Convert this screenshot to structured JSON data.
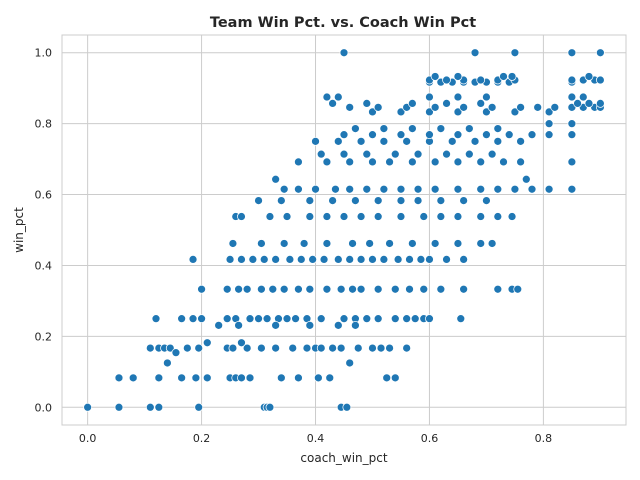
{
  "chart_data": {
    "type": "scatter",
    "title": "Team Win Pct. vs. Coach Win Pct",
    "xlabel": "coach_win_pct",
    "ylabel": "win_pct",
    "xlim": [
      -0.045,
      0.945
    ],
    "ylim": [
      -0.05,
      1.05
    ],
    "x_ticks": [
      0.0,
      0.2,
      0.4,
      0.6,
      0.8
    ],
    "y_ticks": [
      0.0,
      0.2,
      0.4,
      0.6,
      0.8,
      1.0
    ],
    "x_tick_labels": [
      "0.0",
      "0.2",
      "0.4",
      "0.6",
      "0.8"
    ],
    "y_tick_labels": [
      "0.0",
      "0.2",
      "0.4",
      "0.6",
      "0.8",
      "1.0"
    ],
    "grid": true,
    "color": "#1f77b4",
    "points": [
      [
        0.0,
        0.0
      ],
      [
        0.055,
        0.0
      ],
      [
        0.11,
        0.0
      ],
      [
        0.125,
        0.0
      ],
      [
        0.195,
        0.0
      ],
      [
        0.31,
        0.0
      ],
      [
        0.315,
        0.0
      ],
      [
        0.32,
        0.0
      ],
      [
        0.445,
        0.0
      ],
      [
        0.455,
        0.0
      ],
      [
        0.055,
        0.083
      ],
      [
        0.08,
        0.083
      ],
      [
        0.125,
        0.083
      ],
      [
        0.165,
        0.083
      ],
      [
        0.19,
        0.083
      ],
      [
        0.21,
        0.083
      ],
      [
        0.25,
        0.083
      ],
      [
        0.26,
        0.083
      ],
      [
        0.27,
        0.083
      ],
      [
        0.285,
        0.083
      ],
      [
        0.34,
        0.083
      ],
      [
        0.37,
        0.083
      ],
      [
        0.405,
        0.083
      ],
      [
        0.425,
        0.083
      ],
      [
        0.525,
        0.083
      ],
      [
        0.54,
        0.083
      ],
      [
        0.14,
        0.125
      ],
      [
        0.46,
        0.125
      ],
      [
        0.11,
        0.167
      ],
      [
        0.125,
        0.167
      ],
      [
        0.135,
        0.167
      ],
      [
        0.145,
        0.167
      ],
      [
        0.175,
        0.167
      ],
      [
        0.195,
        0.167
      ],
      [
        0.245,
        0.167
      ],
      [
        0.255,
        0.167
      ],
      [
        0.28,
        0.167
      ],
      [
        0.305,
        0.167
      ],
      [
        0.33,
        0.167
      ],
      [
        0.36,
        0.167
      ],
      [
        0.385,
        0.167
      ],
      [
        0.4,
        0.167
      ],
      [
        0.41,
        0.167
      ],
      [
        0.43,
        0.167
      ],
      [
        0.445,
        0.167
      ],
      [
        0.475,
        0.167
      ],
      [
        0.5,
        0.167
      ],
      [
        0.515,
        0.167
      ],
      [
        0.53,
        0.167
      ],
      [
        0.56,
        0.167
      ],
      [
        0.155,
        0.154
      ],
      [
        0.21,
        0.182
      ],
      [
        0.27,
        0.182
      ],
      [
        0.12,
        0.25
      ],
      [
        0.165,
        0.25
      ],
      [
        0.185,
        0.25
      ],
      [
        0.2,
        0.25
      ],
      [
        0.245,
        0.25
      ],
      [
        0.26,
        0.25
      ],
      [
        0.285,
        0.25
      ],
      [
        0.3,
        0.25
      ],
      [
        0.315,
        0.25
      ],
      [
        0.335,
        0.25
      ],
      [
        0.35,
        0.25
      ],
      [
        0.365,
        0.25
      ],
      [
        0.385,
        0.25
      ],
      [
        0.41,
        0.25
      ],
      [
        0.45,
        0.25
      ],
      [
        0.47,
        0.25
      ],
      [
        0.49,
        0.25
      ],
      [
        0.51,
        0.25
      ],
      [
        0.54,
        0.25
      ],
      [
        0.56,
        0.25
      ],
      [
        0.575,
        0.25
      ],
      [
        0.59,
        0.25
      ],
      [
        0.6,
        0.25
      ],
      [
        0.655,
        0.25
      ],
      [
        0.23,
        0.231
      ],
      [
        0.265,
        0.231
      ],
      [
        0.33,
        0.231
      ],
      [
        0.39,
        0.231
      ],
      [
        0.44,
        0.231
      ],
      [
        0.47,
        0.231
      ],
      [
        0.2,
        0.333
      ],
      [
        0.245,
        0.333
      ],
      [
        0.265,
        0.333
      ],
      [
        0.28,
        0.333
      ],
      [
        0.305,
        0.333
      ],
      [
        0.325,
        0.333
      ],
      [
        0.345,
        0.333
      ],
      [
        0.37,
        0.333
      ],
      [
        0.39,
        0.333
      ],
      [
        0.42,
        0.333
      ],
      [
        0.445,
        0.333
      ],
      [
        0.465,
        0.333
      ],
      [
        0.48,
        0.333
      ],
      [
        0.51,
        0.333
      ],
      [
        0.54,
        0.333
      ],
      [
        0.565,
        0.333
      ],
      [
        0.59,
        0.333
      ],
      [
        0.62,
        0.333
      ],
      [
        0.66,
        0.333
      ],
      [
        0.72,
        0.333
      ],
      [
        0.745,
        0.333
      ],
      [
        0.755,
        0.333
      ],
      [
        0.185,
        0.417
      ],
      [
        0.25,
        0.417
      ],
      [
        0.27,
        0.417
      ],
      [
        0.29,
        0.417
      ],
      [
        0.31,
        0.417
      ],
      [
        0.33,
        0.417
      ],
      [
        0.355,
        0.417
      ],
      [
        0.375,
        0.417
      ],
      [
        0.395,
        0.417
      ],
      [
        0.415,
        0.417
      ],
      [
        0.44,
        0.417
      ],
      [
        0.46,
        0.417
      ],
      [
        0.48,
        0.417
      ],
      [
        0.5,
        0.417
      ],
      [
        0.52,
        0.417
      ],
      [
        0.545,
        0.417
      ],
      [
        0.565,
        0.417
      ],
      [
        0.585,
        0.417
      ],
      [
        0.6,
        0.417
      ],
      [
        0.63,
        0.417
      ],
      [
        0.66,
        0.417
      ],
      [
        0.255,
        0.462
      ],
      [
        0.305,
        0.462
      ],
      [
        0.345,
        0.462
      ],
      [
        0.38,
        0.462
      ],
      [
        0.42,
        0.462
      ],
      [
        0.465,
        0.462
      ],
      [
        0.495,
        0.462
      ],
      [
        0.53,
        0.462
      ],
      [
        0.57,
        0.462
      ],
      [
        0.61,
        0.462
      ],
      [
        0.65,
        0.462
      ],
      [
        0.69,
        0.462
      ],
      [
        0.71,
        0.462
      ],
      [
        0.26,
        0.538
      ],
      [
        0.27,
        0.538
      ],
      [
        0.32,
        0.538
      ],
      [
        0.35,
        0.538
      ],
      [
        0.39,
        0.538
      ],
      [
        0.42,
        0.538
      ],
      [
        0.45,
        0.538
      ],
      [
        0.48,
        0.538
      ],
      [
        0.51,
        0.538
      ],
      [
        0.55,
        0.538
      ],
      [
        0.59,
        0.538
      ],
      [
        0.62,
        0.538
      ],
      [
        0.65,
        0.538
      ],
      [
        0.69,
        0.538
      ],
      [
        0.72,
        0.538
      ],
      [
        0.745,
        0.538
      ],
      [
        0.3,
        0.583
      ],
      [
        0.34,
        0.583
      ],
      [
        0.39,
        0.583
      ],
      [
        0.43,
        0.583
      ],
      [
        0.47,
        0.583
      ],
      [
        0.51,
        0.583
      ],
      [
        0.55,
        0.583
      ],
      [
        0.58,
        0.583
      ],
      [
        0.62,
        0.583
      ],
      [
        0.66,
        0.583
      ],
      [
        0.7,
        0.583
      ],
      [
        0.345,
        0.615
      ],
      [
        0.37,
        0.615
      ],
      [
        0.4,
        0.615
      ],
      [
        0.435,
        0.615
      ],
      [
        0.46,
        0.615
      ],
      [
        0.49,
        0.615
      ],
      [
        0.52,
        0.615
      ],
      [
        0.55,
        0.615
      ],
      [
        0.58,
        0.615
      ],
      [
        0.61,
        0.615
      ],
      [
        0.65,
        0.615
      ],
      [
        0.69,
        0.615
      ],
      [
        0.72,
        0.615
      ],
      [
        0.75,
        0.615
      ],
      [
        0.78,
        0.615
      ],
      [
        0.81,
        0.615
      ],
      [
        0.85,
        0.615
      ],
      [
        0.33,
        0.643
      ],
      [
        0.77,
        0.643
      ],
      [
        0.37,
        0.692
      ],
      [
        0.42,
        0.692
      ],
      [
        0.46,
        0.692
      ],
      [
        0.5,
        0.692
      ],
      [
        0.53,
        0.692
      ],
      [
        0.57,
        0.692
      ],
      [
        0.61,
        0.692
      ],
      [
        0.65,
        0.692
      ],
      [
        0.69,
        0.692
      ],
      [
        0.73,
        0.692
      ],
      [
        0.76,
        0.692
      ],
      [
        0.85,
        0.692
      ],
      [
        0.41,
        0.714
      ],
      [
        0.45,
        0.714
      ],
      [
        0.49,
        0.714
      ],
      [
        0.54,
        0.714
      ],
      [
        0.58,
        0.714
      ],
      [
        0.63,
        0.714
      ],
      [
        0.67,
        0.714
      ],
      [
        0.71,
        0.714
      ],
      [
        0.4,
        0.75
      ],
      [
        0.44,
        0.75
      ],
      [
        0.48,
        0.75
      ],
      [
        0.52,
        0.75
      ],
      [
        0.56,
        0.75
      ],
      [
        0.6,
        0.75
      ],
      [
        0.64,
        0.75
      ],
      [
        0.68,
        0.75
      ],
      [
        0.72,
        0.75
      ],
      [
        0.76,
        0.75
      ],
      [
        0.45,
        0.769
      ],
      [
        0.5,
        0.769
      ],
      [
        0.55,
        0.769
      ],
      [
        0.6,
        0.769
      ],
      [
        0.65,
        0.769
      ],
      [
        0.7,
        0.769
      ],
      [
        0.74,
        0.769
      ],
      [
        0.78,
        0.769
      ],
      [
        0.81,
        0.769
      ],
      [
        0.85,
        0.769
      ],
      [
        0.47,
        0.786
      ],
      [
        0.52,
        0.786
      ],
      [
        0.57,
        0.786
      ],
      [
        0.62,
        0.786
      ],
      [
        0.67,
        0.786
      ],
      [
        0.72,
        0.786
      ],
      [
        0.85,
        0.8
      ],
      [
        0.81,
        0.8
      ],
      [
        0.5,
        0.833
      ],
      [
        0.55,
        0.833
      ],
      [
        0.6,
        0.833
      ],
      [
        0.65,
        0.833
      ],
      [
        0.7,
        0.833
      ],
      [
        0.75,
        0.833
      ],
      [
        0.81,
        0.833
      ],
      [
        0.46,
        0.846
      ],
      [
        0.51,
        0.846
      ],
      [
        0.56,
        0.846
      ],
      [
        0.61,
        0.846
      ],
      [
        0.66,
        0.846
      ],
      [
        0.71,
        0.846
      ],
      [
        0.76,
        0.846
      ],
      [
        0.79,
        0.846
      ],
      [
        0.82,
        0.846
      ],
      [
        0.85,
        0.846
      ],
      [
        0.87,
        0.846
      ],
      [
        0.89,
        0.846
      ],
      [
        0.9,
        0.846
      ],
      [
        0.43,
        0.857
      ],
      [
        0.49,
        0.857
      ],
      [
        0.57,
        0.857
      ],
      [
        0.63,
        0.857
      ],
      [
        0.69,
        0.857
      ],
      [
        0.86,
        0.857
      ],
      [
        0.88,
        0.857
      ],
      [
        0.9,
        0.857
      ],
      [
        0.42,
        0.875
      ],
      [
        0.44,
        0.875
      ],
      [
        0.6,
        0.875
      ],
      [
        0.65,
        0.875
      ],
      [
        0.7,
        0.875
      ],
      [
        0.85,
        0.875
      ],
      [
        0.87,
        0.875
      ],
      [
        0.6,
        0.917
      ],
      [
        0.62,
        0.917
      ],
      [
        0.64,
        0.917
      ],
      [
        0.66,
        0.917
      ],
      [
        0.68,
        0.917
      ],
      [
        0.7,
        0.917
      ],
      [
        0.72,
        0.917
      ],
      [
        0.74,
        0.917
      ],
      [
        0.85,
        0.917
      ],
      [
        0.6,
        0.923
      ],
      [
        0.63,
        0.923
      ],
      [
        0.66,
        0.923
      ],
      [
        0.69,
        0.923
      ],
      [
        0.72,
        0.923
      ],
      [
        0.75,
        0.923
      ],
      [
        0.85,
        0.923
      ],
      [
        0.87,
        0.923
      ],
      [
        0.89,
        0.923
      ],
      [
        0.9,
        0.923
      ],
      [
        0.61,
        0.933
      ],
      [
        0.65,
        0.933
      ],
      [
        0.73,
        0.933
      ],
      [
        0.745,
        0.933
      ],
      [
        0.88,
        0.933
      ],
      [
        0.45,
        1.0
      ],
      [
        0.68,
        1.0
      ],
      [
        0.75,
        1.0
      ],
      [
        0.85,
        1.0
      ],
      [
        0.9,
        1.0
      ]
    ]
  }
}
